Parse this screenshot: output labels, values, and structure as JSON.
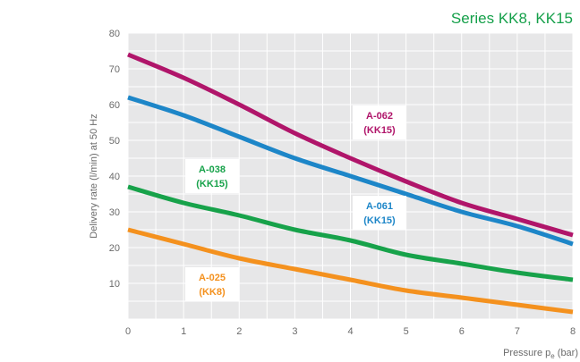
{
  "chart_data": {
    "type": "line",
    "title": "Series KK8, KK15",
    "ylabel": "Delivery rate (l/min) at 50 Hz",
    "xlabel": "Pressure pe (bar)",
    "xlabel_main": "Pressure p",
    "xlabel_sub": "e",
    "xlabel_unit": " (bar)",
    "xlim": [
      0,
      8
    ],
    "ylim": [
      0,
      80
    ],
    "x_ticks": [
      "0",
      "1",
      "2",
      "3",
      "4",
      "5",
      "6",
      "7",
      "8"
    ],
    "y_ticks": [
      "10",
      "20",
      "30",
      "40",
      "50",
      "60",
      "70",
      "80"
    ],
    "grid": true,
    "series": [
      {
        "name": "A-062",
        "sub": "(KK15)",
        "color": "#b0156a",
        "points": [
          [
            0,
            74
          ],
          [
            1,
            67.5
          ],
          [
            2,
            60
          ],
          [
            3,
            52
          ],
          [
            4,
            45
          ],
          [
            5,
            38.5
          ],
          [
            6,
            32.5
          ],
          [
            7,
            28
          ],
          [
            8,
            23.5
          ]
        ]
      },
      {
        "name": "A-061",
        "sub": "(KK15)",
        "color": "#1d86c8",
        "points": [
          [
            0,
            62
          ],
          [
            1,
            57
          ],
          [
            2,
            51
          ],
          [
            3,
            45
          ],
          [
            4,
            40
          ],
          [
            5,
            35
          ],
          [
            6,
            30
          ],
          [
            7,
            26
          ],
          [
            8,
            21
          ]
        ]
      },
      {
        "name": "A-038",
        "sub": "(KK15)",
        "color": "#17a24a",
        "points": [
          [
            0,
            37
          ],
          [
            1,
            32.5
          ],
          [
            2,
            29
          ],
          [
            3,
            25
          ],
          [
            4,
            22
          ],
          [
            5,
            18
          ],
          [
            6,
            15.5
          ],
          [
            7,
            13
          ],
          [
            8,
            11
          ]
        ]
      },
      {
        "name": "A-025",
        "sub": "(KK8)",
        "color": "#f4911e",
        "points": [
          [
            0,
            25
          ],
          [
            1,
            21
          ],
          [
            2,
            17
          ],
          [
            3,
            14
          ],
          [
            4,
            11
          ],
          [
            5,
            8
          ],
          [
            6,
            6
          ],
          [
            7,
            4
          ],
          [
            8,
            2
          ]
        ]
      }
    ]
  }
}
